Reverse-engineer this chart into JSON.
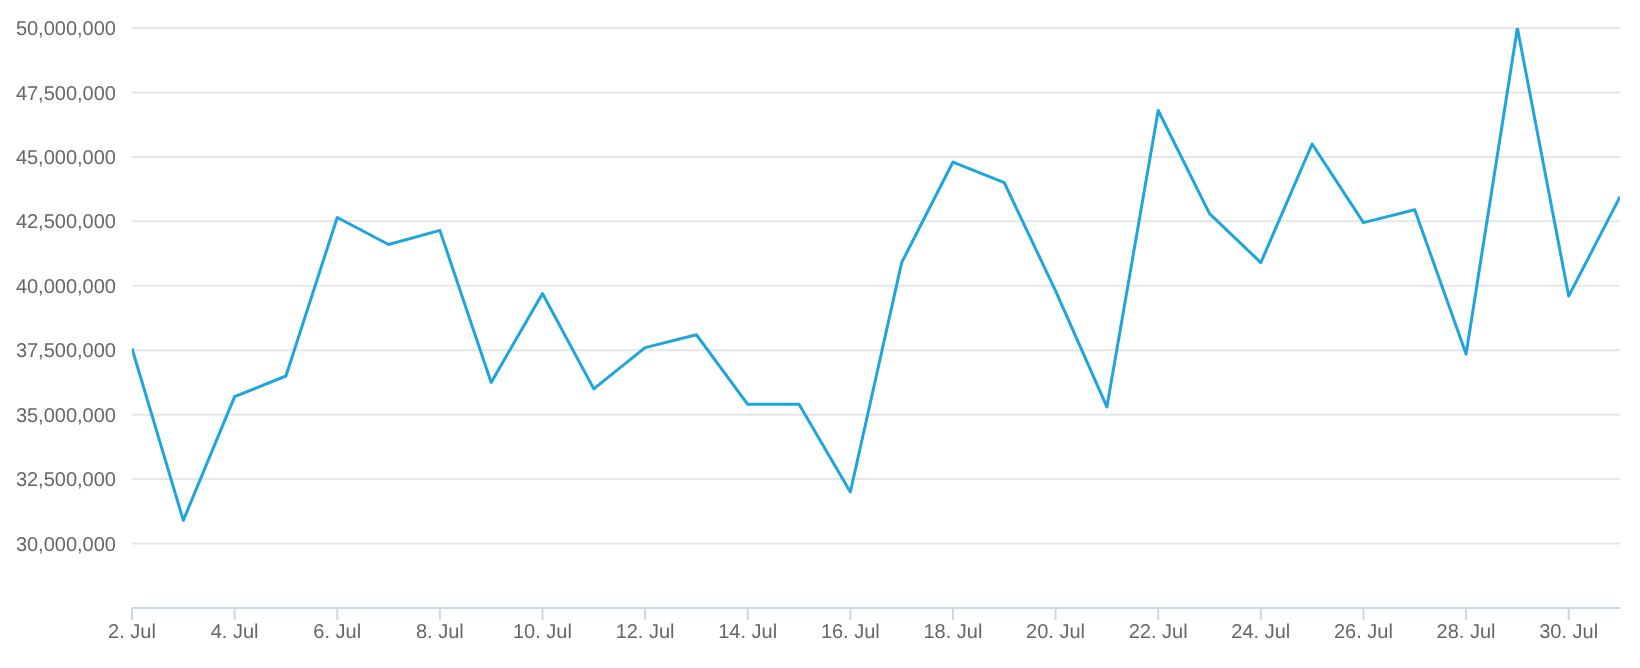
{
  "chart_data": {
    "type": "line",
    "x": [
      "--07-02",
      "--07-03",
      "--07-04",
      "--07-05",
      "--07-06",
      "--07-07",
      "--07-08",
      "--07-09",
      "--07-10",
      "--07-11",
      "--07-12",
      "--07-13",
      "--07-14",
      "--07-15",
      "--07-16",
      "--07-17",
      "--07-18",
      "--07-19",
      "--07-20",
      "--07-21",
      "--07-22",
      "--07-23",
      "--07-24",
      "--07-25",
      "--07-26",
      "--07-27",
      "--07-28",
      "--07-29",
      "--07-30",
      "--07-31"
    ],
    "series": [
      {
        "color": "#1ea6dc",
        "values": [
          37570000,
          30900000,
          35700000,
          36500000,
          42650000,
          41600000,
          42150000,
          36250000,
          39700000,
          36000000,
          37600000,
          38100000,
          35400000,
          35400000,
          32000000,
          40900000,
          44800000,
          44000000,
          39800000,
          35300000,
          46800000,
          42800000,
          40900000,
          45500000,
          42450000,
          42950000,
          37350000,
          50000000,
          39600000,
          43450000
        ]
      }
    ],
    "xlim": [
      "--07-02",
      "--07-31"
    ],
    "xticks": [
      {
        "value": "--07-02",
        "label": "2. Jul"
      },
      {
        "value": "--07-04",
        "label": "4. Jul"
      },
      {
        "value": "--07-06",
        "label": "6. Jul"
      },
      {
        "value": "--07-08",
        "label": "8. Jul"
      },
      {
        "value": "--07-10",
        "label": "10. Jul"
      },
      {
        "value": "--07-12",
        "label": "12. Jul"
      },
      {
        "value": "--07-14",
        "label": "14. Jul"
      },
      {
        "value": "--07-16",
        "label": "16. Jul"
      },
      {
        "value": "--07-18",
        "label": "18. Jul"
      },
      {
        "value": "--07-20",
        "label": "20. Jul"
      },
      {
        "value": "--07-22",
        "label": "22. Jul"
      },
      {
        "value": "--07-24",
        "label": "24. Jul"
      },
      {
        "value": "--07-26",
        "label": "26. Jul"
      },
      {
        "value": "--07-28",
        "label": "28. Jul"
      },
      {
        "value": "--07-30",
        "label": "30. Jul"
      }
    ],
    "ylim": [
      27500000,
      50000000
    ],
    "yticks": [
      {
        "value": 27500000,
        "label": null
      },
      {
        "value": 30000000,
        "label": "30,000,000"
      },
      {
        "value": 32500000,
        "label": "32,500,000"
      },
      {
        "value": 35000000,
        "label": "35,000,000"
      },
      {
        "value": 37500000,
        "label": "37,500,000"
      },
      {
        "value": 40000000,
        "label": "40,000,000"
      },
      {
        "value": 42500000,
        "label": "42,500,000"
      },
      {
        "value": 45000000,
        "label": "45,000,000"
      },
      {
        "value": 47500000,
        "label": "47,500,000"
      },
      {
        "value": 50000000,
        "label": "50,000,000"
      }
    ],
    "grid": "y",
    "marker": "none",
    "line_style": "solid",
    "legend": false
  }
}
